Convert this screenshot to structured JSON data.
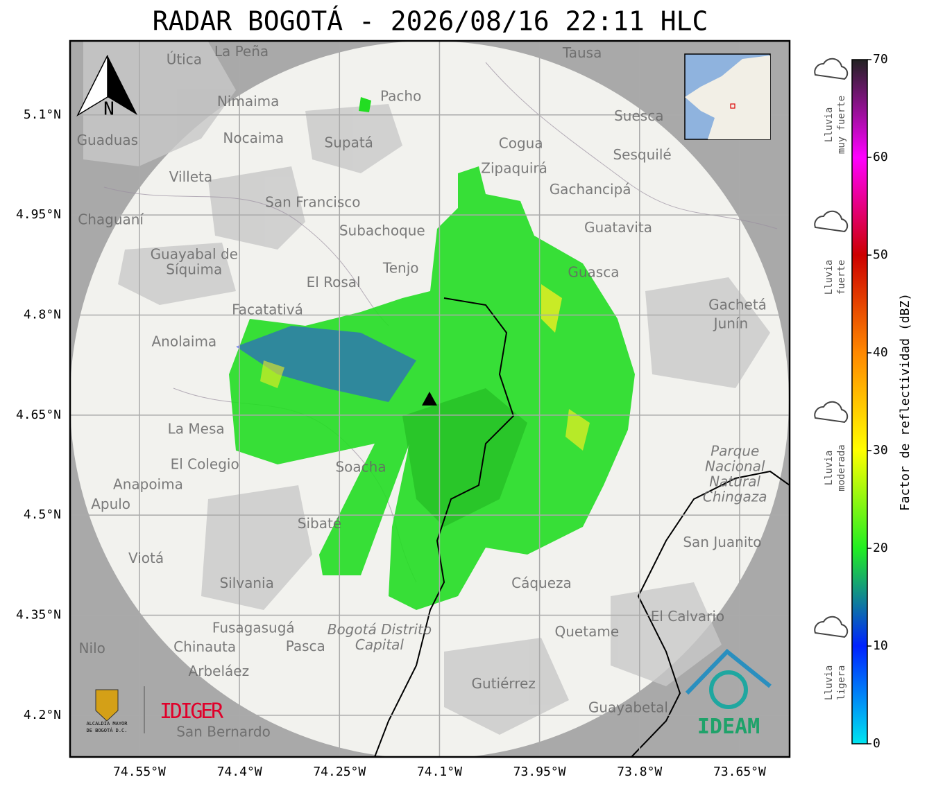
{
  "title": "RADAR BOGOTÁ - 2026/08/16 22:11 HLC",
  "map": {
    "xlim": [
      -74.654,
      -73.575
    ],
    "ylim": [
      4.1375,
      5.211
    ],
    "xticks": [
      {
        "value": -74.55,
        "label": "74.55°W"
      },
      {
        "value": -74.4,
        "label": "74.4°W"
      },
      {
        "value": -74.25,
        "label": "74.25°W"
      },
      {
        "value": -74.1,
        "label": "74.1°W"
      },
      {
        "value": -73.95,
        "label": "73.95°W"
      },
      {
        "value": -73.8,
        "label": "73.8°W"
      },
      {
        "value": -73.65,
        "label": "73.65°W"
      }
    ],
    "yticks": [
      {
        "value": 5.1,
        "label": "5.1°N"
      },
      {
        "value": 4.95,
        "label": "4.95°N"
      },
      {
        "value": 4.8,
        "label": "4.8°N"
      },
      {
        "value": 4.65,
        "label": "4.65°N"
      },
      {
        "value": 4.5,
        "label": "4.5°N"
      },
      {
        "value": 4.35,
        "label": "4.35°N"
      },
      {
        "value": 4.2,
        "label": "4.2°N"
      }
    ],
    "grid": true,
    "north": "N",
    "places": [
      {
        "name": "La Peña",
        "lon": -74.397,
        "lat": 5.194
      },
      {
        "name": "Útica",
        "lon": -74.483,
        "lat": 5.182
      },
      {
        "name": "Tausa",
        "lon": -73.886,
        "lat": 5.192
      },
      {
        "name": "Pacho",
        "lon": -74.158,
        "lat": 5.127
      },
      {
        "name": "Nimaima",
        "lon": -74.387,
        "lat": 5.119
      },
      {
        "name": "Suesca",
        "lon": -73.801,
        "lat": 5.097
      },
      {
        "name": "Guaduas",
        "lon": -74.598,
        "lat": 5.061
      },
      {
        "name": "Nocaima",
        "lon": -74.379,
        "lat": 5.064
      },
      {
        "name": "Supatá",
        "lon": -74.236,
        "lat": 5.057
      },
      {
        "name": "Cogua",
        "lon": -73.978,
        "lat": 5.056
      },
      {
        "name": "Sesquilé",
        "lon": -73.796,
        "lat": 5.039
      },
      {
        "name": "Zipaquirá",
        "lon": -73.988,
        "lat": 5.019
      },
      {
        "name": "Villeta",
        "lon": -74.473,
        "lat": 5.006
      },
      {
        "name": "Gachancipá",
        "lon": -73.874,
        "lat": 4.987
      },
      {
        "name": "San Francisco",
        "lon": -74.29,
        "lat": 4.968
      },
      {
        "name": "Chaguaní",
        "lon": -74.593,
        "lat": 4.942
      },
      {
        "name": "Guatavita",
        "lon": -73.832,
        "lat": 4.93
      },
      {
        "name": "Subachoque",
        "lon": -74.186,
        "lat": 4.925
      },
      {
        "lines": [
          "Guayabal de",
          "Síquima"
        ],
        "lon": -74.468,
        "lat": 4.89
      },
      {
        "name": "Tenjo",
        "lon": -74.158,
        "lat": 4.869
      },
      {
        "name": "Guasca",
        "lon": -73.869,
        "lat": 4.863
      },
      {
        "name": "El Rosal",
        "lon": -74.259,
        "lat": 4.848
      },
      {
        "name": "Facatativá",
        "lon": -74.358,
        "lat": 4.807
      },
      {
        "name": "Gachetá",
        "lon": -73.653,
        "lat": 4.814
      },
      {
        "name": "Junín",
        "lon": -73.663,
        "lat": 4.786
      },
      {
        "name": "Anolaima",
        "lon": -74.483,
        "lat": 4.759
      },
      {
        "name": "La Mesa",
        "lon": -74.465,
        "lat": 4.628
      },
      {
        "name": "El Colegio",
        "lon": -74.452,
        "lat": 4.575
      },
      {
        "name": "Soacha",
        "lon": -74.218,
        "lat": 4.571
      },
      {
        "lines": [
          "Parque",
          "Nacional",
          "Natural",
          "Chingaza"
        ],
        "lon": -73.657,
        "lat": 4.595,
        "italic": true
      },
      {
        "name": "Anapoima",
        "lon": -74.537,
        "lat": 4.545
      },
      {
        "name": "Apulo",
        "lon": -74.593,
        "lat": 4.515
      },
      {
        "name": "Sibaté",
        "lon": -74.28,
        "lat": 4.486
      },
      {
        "name": "San Juanito",
        "lon": -73.676,
        "lat": 4.458
      },
      {
        "name": "Viotá",
        "lon": -74.54,
        "lat": 4.434
      },
      {
        "name": "Silvania",
        "lon": -74.389,
        "lat": 4.397
      },
      {
        "name": "Cáqueza",
        "lon": -73.947,
        "lat": 4.397
      },
      {
        "name": "El Calvario",
        "lon": -73.728,
        "lat": 4.347
      },
      {
        "name": "Fusagasugá",
        "lon": -74.379,
        "lat": 4.33
      },
      {
        "lines": [
          "Bogotá Distrito",
          "Capital"
        ],
        "lon": -74.19,
        "lat": 4.327,
        "italic": true
      },
      {
        "name": "Quetame",
        "lon": -73.879,
        "lat": 4.324
      },
      {
        "name": "Chinauta",
        "lon": -74.452,
        "lat": 4.301
      },
      {
        "name": "Pasca",
        "lon": -74.301,
        "lat": 4.302
      },
      {
        "name": "Nilo",
        "lon": -74.621,
        "lat": 4.299
      },
      {
        "name": "Arbeláez",
        "lon": -74.431,
        "lat": 4.265
      },
      {
        "name": "Gutiérrez",
        "lon": -74.004,
        "lat": 4.246
      },
      {
        "name": "Guayabetal",
        "lon": -73.817,
        "lat": 4.21
      },
      {
        "name": "San Bernardo",
        "lon": -74.424,
        "lat": 4.174
      }
    ]
  },
  "colorbar": {
    "label": "Factor de reflectividad (dBZ)",
    "lim": [
      0,
      70
    ],
    "ticks": [
      0,
      10,
      20,
      30,
      40,
      50,
      60,
      70
    ],
    "colors": [
      "#00e5f0",
      "#0022ff",
      "#22ee22",
      "#ffff00",
      "#ff8800",
      "#cc0000",
      "#ff00ff",
      "#222222"
    ]
  },
  "rain": [
    {
      "lines": [
        "Lluvia",
        "muy fuerte"
      ]
    },
    {
      "lines": [
        "Lluvia",
        "fuerte"
      ]
    },
    {
      "lines": [
        "Lluvia",
        "moderada"
      ]
    },
    {
      "lines": [
        "Lluvia",
        "ligera"
      ]
    }
  ],
  "logos": {
    "alcaldia": [
      "ALCALDÍA MAYOR",
      "DE BOGOTÁ D.C."
    ],
    "idiger": "IDIGER",
    "ideam": "IDEAM"
  }
}
